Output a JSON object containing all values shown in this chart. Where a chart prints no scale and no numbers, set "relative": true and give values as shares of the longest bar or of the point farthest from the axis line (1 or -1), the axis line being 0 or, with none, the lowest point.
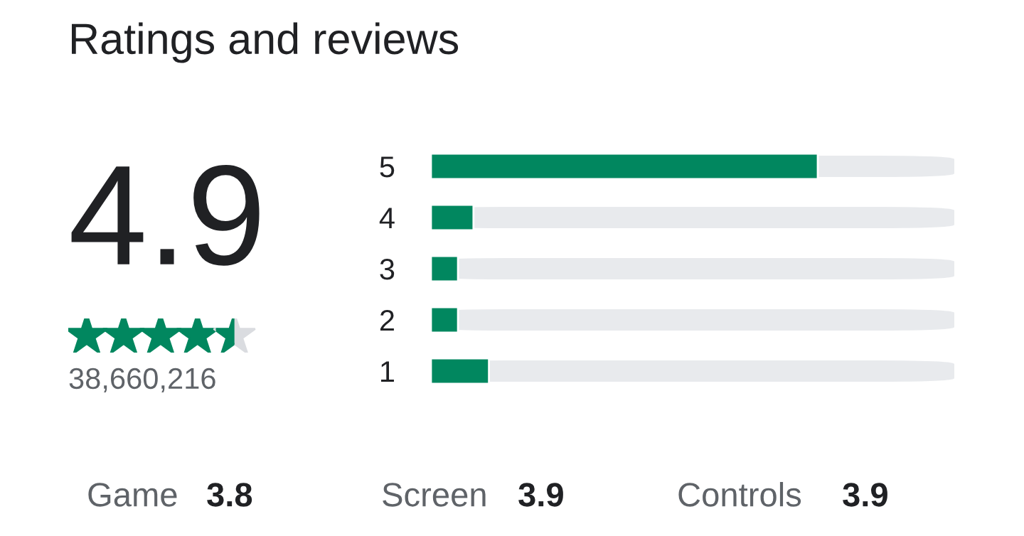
{
  "chart_data": [
    {
      "type": "bar",
      "title": "Ratings and reviews",
      "orientation": "horizontal",
      "relative": true,
      "categories": [
        "5",
        "4",
        "3",
        "2",
        "1"
      ],
      "series": [
        {
          "color": "#01875f",
          "values": [
            1,
            0.11,
            0.07,
            0.07,
            0.15
          ]
        }
      ]
    },
    {
      "type": "other",
      "annotations": [
        "4.9",
        "38,660,216",
        "Game",
        "3.8",
        "Screen",
        "3.9",
        "Controls",
        "3.9"
      ]
    }
  ]
}
